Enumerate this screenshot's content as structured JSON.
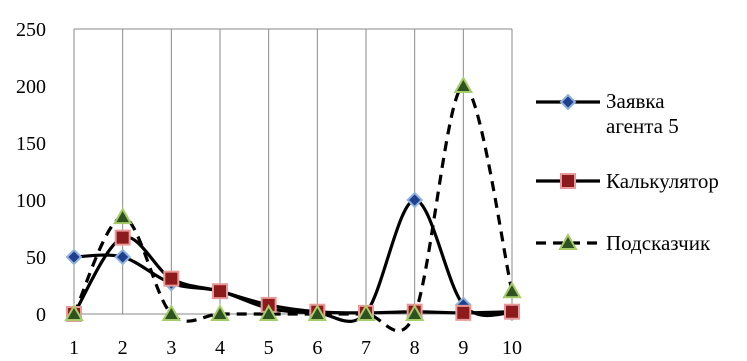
{
  "chart_data": {
    "type": "line",
    "x": [
      1,
      2,
      3,
      4,
      5,
      6,
      7,
      8,
      9,
      10
    ],
    "ylim": [
      0,
      250
    ],
    "yticks": [
      0,
      50,
      100,
      150,
      200,
      250
    ],
    "grid": "vertical",
    "legend_position": "right",
    "series": [
      {
        "name": "Заявка агента 5",
        "name_lines": [
          "Заявка",
          "агента 5"
        ],
        "values": [
          50,
          50,
          27,
          20,
          5,
          1,
          1,
          100,
          8,
          1
        ],
        "line_style": "solid",
        "marker": "diamond",
        "marker_fill": "#1F3F8F",
        "marker_edge": "#8FB2DD"
      },
      {
        "name": "Калькулятор",
        "name_lines": [
          "Калькулятор"
        ],
        "values": [
          0,
          67,
          31,
          20,
          8,
          2,
          1,
          2,
          1,
          2
        ],
        "line_style": "solid",
        "marker": "square",
        "marker_fill": "#8E1B1B",
        "marker_edge": "#E89A9A"
      },
      {
        "name": "Подсказчик",
        "name_lines": [
          "Подсказчик"
        ],
        "values": [
          0,
          85,
          0,
          0,
          0,
          0,
          0,
          0,
          200,
          20
        ],
        "line_style": "dashed",
        "marker": "triangle",
        "marker_fill": "#2E5220",
        "marker_edge": "#A6CC6A"
      }
    ]
  }
}
